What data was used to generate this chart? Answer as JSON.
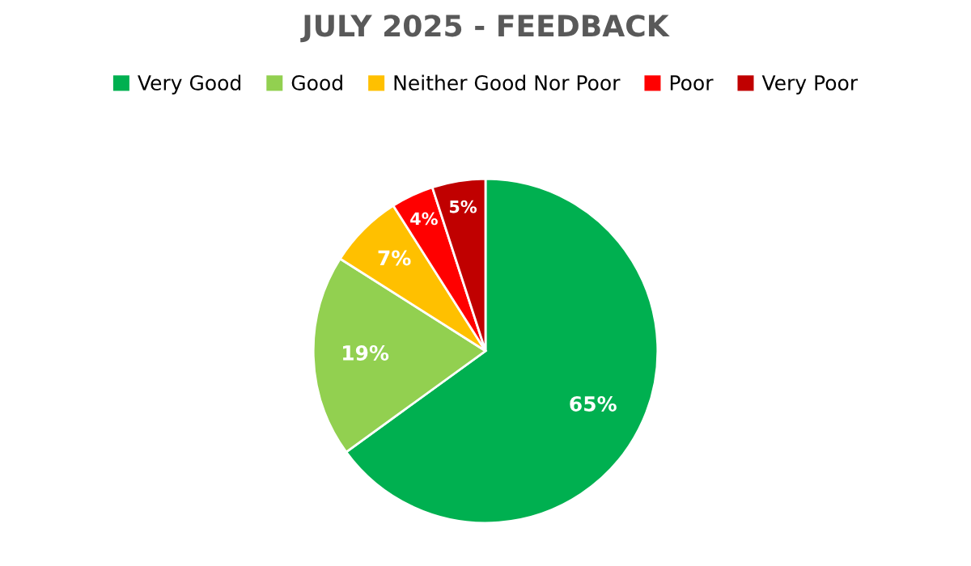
{
  "chart_data": {
    "type": "pie",
    "title": "JULY 2025 - FEEDBACK",
    "categories": [
      "Very Good",
      "Good",
      "Neither Good Nor Poor",
      "Poor",
      "Very Poor"
    ],
    "values": [
      65,
      19,
      7,
      4,
      5
    ],
    "colors": [
      "#00b050",
      "#92d050",
      "#ffc000",
      "#ff0000",
      "#c00000"
    ],
    "value_labels": [
      "65%",
      "19%",
      "7%",
      "4%",
      "5%"
    ],
    "legend": "top"
  }
}
